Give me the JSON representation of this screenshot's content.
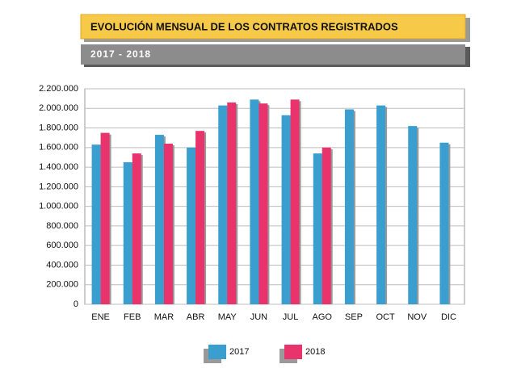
{
  "chart_data": {
    "type": "bar",
    "title": "EVOLUCIÓN MENSUAL DE LOS CONTRATOS REGISTRADOS",
    "subtitle": "2017 - 2018",
    "categories": [
      "ENE",
      "FEB",
      "MAR",
      "ABR",
      "MAY",
      "JUN",
      "JUL",
      "AGO",
      "SEP",
      "OCT",
      "NOV",
      "DIC"
    ],
    "series": [
      {
        "name": "2017",
        "color": "#3a9fcf",
        "values": [
          1630000,
          1450000,
          1730000,
          1600000,
          2030000,
          2090000,
          1930000,
          1540000,
          1990000,
          2030000,
          1820000,
          1650000
        ]
      },
      {
        "name": "2018",
        "color": "#e8336d",
        "values": [
          1750000,
          1540000,
          1640000,
          1770000,
          2060000,
          2050000,
          2090000,
          1600000,
          null,
          null,
          null,
          null
        ]
      }
    ],
    "ylim": [
      0,
      2200000
    ],
    "yticks": [
      0,
      {
        "value": 200000,
        "label": "200.000"
      },
      {
        "value": 400000,
        "label": "400.000"
      },
      {
        "value": 600000,
        "label": "600.000"
      },
      {
        "value": 800000,
        "label": "800.000"
      },
      {
        "value": 1000000,
        "label": "1.000.000"
      },
      {
        "value": 1200000,
        "label": "1.200.000"
      },
      {
        "value": 1400000,
        "label": "1.400.000"
      },
      {
        "value": 1600000,
        "label": "1.600.000"
      },
      {
        "value": 1800000,
        "label": "1.800.000"
      },
      {
        "value": 2000000,
        "label": "2.000.000"
      },
      {
        "value": 2200000,
        "label": "2.200.000"
      }
    ],
    "grid": true,
    "legend": "bottom"
  }
}
